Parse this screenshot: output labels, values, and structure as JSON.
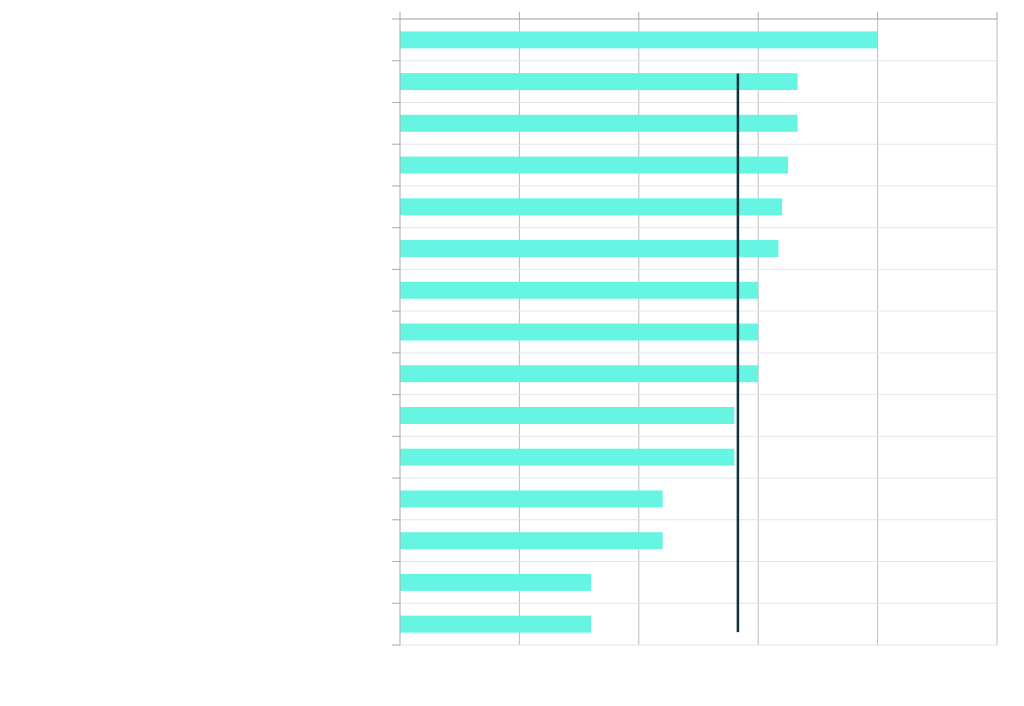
{
  "chart_data": {
    "type": "bar",
    "orientation": "horizontal",
    "title": "",
    "xlabel": "",
    "ylabel": "",
    "categories": [
      "",
      "",
      "",
      "",
      "",
      "",
      "",
      "",
      "",
      "",
      "",
      "",
      "",
      "",
      ""
    ],
    "values": [
      4.0,
      3.33,
      3.33,
      3.25,
      3.2,
      3.17,
      3.0,
      3.0,
      3.0,
      2.8,
      2.8,
      2.2,
      2.2,
      1.6,
      1.6
    ],
    "xlim": [
      0,
      5
    ],
    "x_ticks": [
      0,
      1,
      2,
      3,
      4,
      5
    ],
    "reference_line": {
      "value": 2.83
    },
    "grid": "vertical-and-horizontal",
    "tick_labels_visible": false,
    "colors": {
      "bar": "#66f5e3",
      "reference_line": "#12303b",
      "grid": "#e4e6ee",
      "axis": "#a9a9a9"
    }
  }
}
